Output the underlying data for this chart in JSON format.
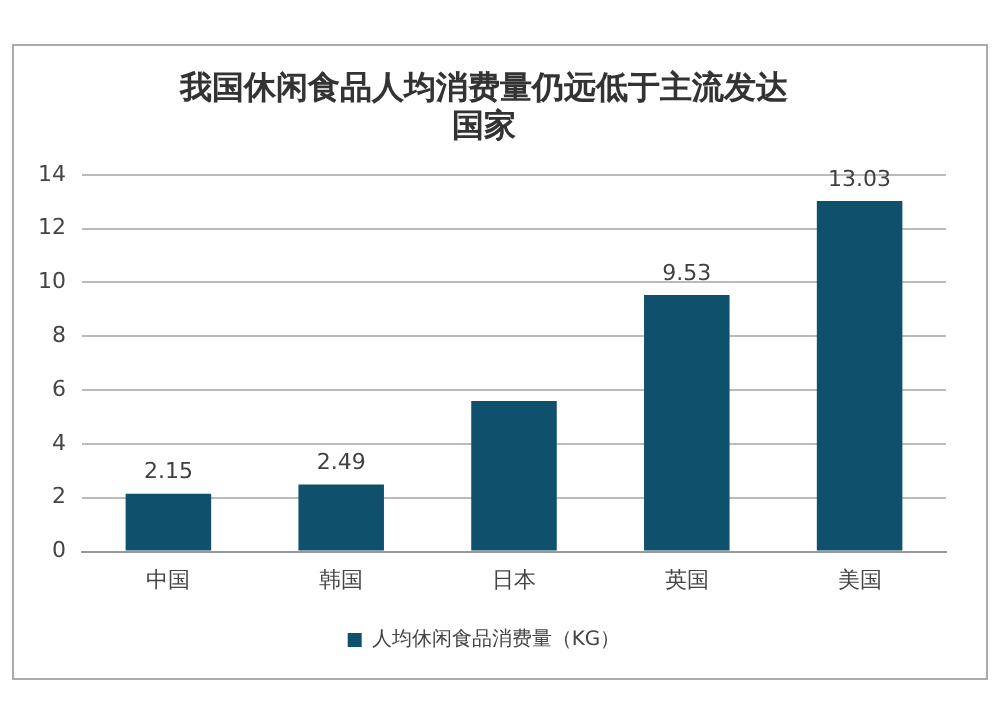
{
  "chart_data": {
    "type": "bar",
    "title": [
      "我国休闲食品人均消费量仍远低于主流发达",
      "国家"
    ],
    "categories": [
      "中国",
      "韩国",
      "日本",
      "英国",
      "美国"
    ],
    "series": [
      {
        "name": "人均休闲食品消费量（KG）",
        "color": "#0f506c",
        "values": [
          2.15,
          2.49,
          5.6,
          9.53,
          13.03
        ],
        "value_labels": [
          "2.15",
          "2.49",
          null,
          "9.53",
          "13.03"
        ]
      }
    ],
    "ylim": [
      0,
      14
    ],
    "yticks": [
      0,
      2,
      4,
      6,
      8,
      10,
      12,
      14
    ],
    "grid": "y",
    "legend": "bottom"
  }
}
